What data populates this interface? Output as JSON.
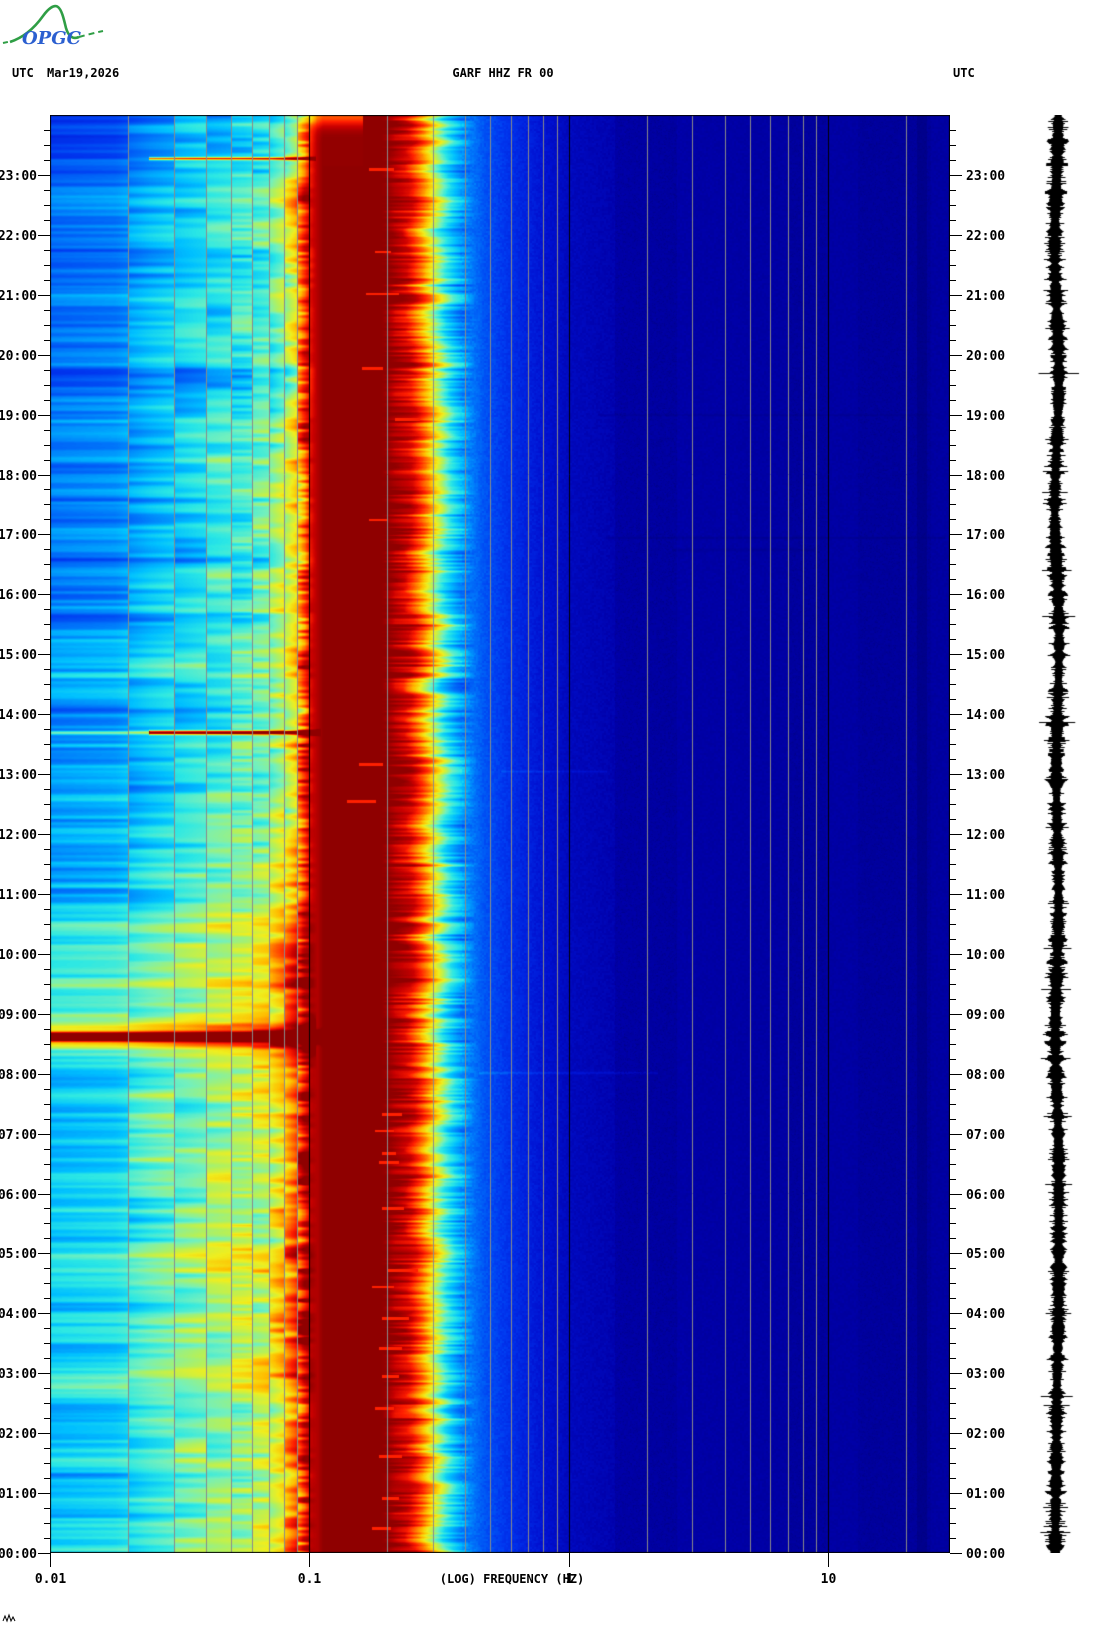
{
  "header": {
    "utc_left": "UTC",
    "date": "Mar19,2026",
    "station_title": "GARF HHZ FR 00",
    "utc_right": "UTC"
  },
  "logo": {
    "text": "OPGC",
    "curve_color": "#2f9e45",
    "text_color": "#2b5fd0"
  },
  "x_axis": {
    "label": "(LOG) FREQUENCY (HZ)",
    "ticks": [
      {
        "value": 0.01,
        "label": "0.01"
      },
      {
        "value": 0.1,
        "label": "0.1"
      },
      {
        "value": 1,
        "label": "1"
      },
      {
        "value": 10,
        "label": "10"
      }
    ],
    "minor_gridlines": [
      0.02,
      0.03,
      0.04,
      0.05,
      0.06,
      0.07,
      0.08,
      0.09,
      0.2,
      0.3,
      0.4,
      0.5,
      0.6,
      0.7,
      0.8,
      0.9,
      2,
      3,
      4,
      5,
      6,
      7,
      8,
      9,
      20
    ],
    "black_gridlines": [
      0.1,
      1,
      10
    ],
    "gridline_color": "#8a8a8a",
    "range_hz": [
      0.01,
      29.6
    ]
  },
  "y_axis": {
    "unit": "UTC",
    "hour_labels": [
      "00:00",
      "01:00",
      "02:00",
      "03:00",
      "04:00",
      "05:00",
      "06:00",
      "07:00",
      "08:00",
      "09:00",
      "10:00",
      "11:00",
      "12:00",
      "13:00",
      "14:00",
      "15:00",
      "16:00",
      "17:00",
      "18:00",
      "19:00",
      "20:00",
      "21:00",
      "22:00",
      "23:00"
    ],
    "minor_ticks_per_hour": 4,
    "range_hours": [
      0,
      24
    ]
  },
  "side_trace": {
    "description": "vertical seismogram amplitude trace",
    "color": "#000000"
  },
  "chart_data": {
    "type": "heatmap",
    "title": "GARF HHZ FR 00",
    "xlabel": "(LOG) FREQUENCY (HZ)",
    "x_hz_range": [
      0.01,
      29.6
    ],
    "y_time_range_utc": [
      "00:00",
      "24:00"
    ],
    "legend": "none",
    "grid": "vertical log-frequency gridlines",
    "colormap": [
      [
        0.0,
        "#000080"
      ],
      [
        0.08,
        "#000092"
      ],
      [
        0.14,
        "#0000AA"
      ],
      [
        0.22,
        "#0012D2"
      ],
      [
        0.3,
        "#0038F0"
      ],
      [
        0.38,
        "#0076FA"
      ],
      [
        0.46,
        "#00C0FF"
      ],
      [
        0.52,
        "#2CE8E4"
      ],
      [
        0.58,
        "#72F0BE"
      ],
      [
        0.64,
        "#B4F05A"
      ],
      [
        0.7,
        "#F0EE1E"
      ],
      [
        0.76,
        "#FFBE00"
      ],
      [
        0.82,
        "#FF6E00"
      ],
      [
        0.88,
        "#FF1E00"
      ],
      [
        0.94,
        "#C80000"
      ],
      [
        1.0,
        "#8F0000"
      ]
    ],
    "bands": [
      {
        "hz": [
          0.01,
          0.025
        ],
        "appearance": "blue with horizontal stripe noise"
      },
      {
        "hz": [
          0.025,
          0.08
        ],
        "appearance": "cyan-green striped columns"
      },
      {
        "hz": [
          0.08,
          0.1
        ],
        "appearance": "yellow/orange/red striped column"
      },
      {
        "hz": [
          0.1,
          0.25
        ],
        "appearance": "saturated dark-red microseism band"
      },
      {
        "hz": [
          0.25,
          0.35
        ],
        "appearance": "ragged red-yellow-cyan transition edge"
      },
      {
        "hz": [
          0.35,
          0.6
        ],
        "appearance": "blue"
      },
      {
        "hz": [
          0.6,
          29.6
        ],
        "appearance": "quiet dark navy with faint speckle"
      }
    ],
    "events": [
      {
        "time_utc": "23:17",
        "t": 23.28,
        "hw": 0.035,
        "hz": [
          0.024,
          0.105
        ],
        "amp": 0.4,
        "mode": "add"
      },
      {
        "time_utc": "23:55",
        "t": 24.0,
        "hw": 0.3,
        "hz": [
          0.09,
          0.16
        ],
        "amp": -0.16,
        "mode": "add"
      },
      {
        "time_utc": "13:42",
        "t": 13.7,
        "hw": 0.05,
        "hz": [
          0.024,
          0.11
        ],
        "amp": 0.58,
        "mode": "add"
      },
      {
        "time_utc": "13:42",
        "t": 13.7,
        "hw": 0.05,
        "hz": [
          0.01,
          0.024
        ],
        "amp": 0.2,
        "mode": "add"
      },
      {
        "time_utc": "08:38",
        "t": 8.62,
        "hw": 0.11,
        "hz": [
          0.01,
          0.115
        ],
        "amp": 0.65,
        "mode": "add"
      },
      {
        "time_utc": "08:38",
        "t": 8.62,
        "hw": 0.34,
        "hz": [
          0.01,
          0.105
        ],
        "amp": 0.17,
        "mode": "add"
      },
      {
        "time_utc": "08:01",
        "t": 8.02,
        "hw": 0.035,
        "hz": [
          0.45,
          2.2
        ],
        "amp": 0.05,
        "mode": "add"
      },
      {
        "time_utc": "13:03",
        "t": 13.05,
        "hw": 0.03,
        "hz": [
          0.55,
          1.4
        ],
        "amp": 0.04,
        "mode": "add"
      },
      {
        "time_utc": "16:57",
        "t": 16.95,
        "hw": 0.03,
        "hz": [
          1.4,
          28
        ],
        "amp": -0.04,
        "mode": "add"
      },
      {
        "time_utc": "19:00",
        "t": 19.0,
        "hw": 0.03,
        "hz": [
          1.3,
          25
        ],
        "amp": -0.03,
        "mode": "add"
      },
      {
        "time_utc": "16:45",
        "t": 16.75,
        "hw": 0.04,
        "hz": [
          2.5,
          9
        ],
        "amp": -0.03,
        "mode": "add"
      }
    ],
    "red_dashes": [
      {
        "t": 23.1,
        "hz": [
          0.17,
          0.21
        ]
      },
      {
        "t": 21.72,
        "hz": [
          0.18,
          0.205
        ]
      },
      {
        "t": 21.02,
        "hz": [
          0.165,
          0.22
        ]
      },
      {
        "t": 19.78,
        "hz": [
          0.16,
          0.19
        ]
      },
      {
        "t": 18.93,
        "hz": [
          0.215,
          0.265
        ]
      },
      {
        "t": 17.25,
        "hz": [
          0.17,
          0.2
        ]
      },
      {
        "t": 13.17,
        "hz": [
          0.155,
          0.19
        ]
      },
      {
        "t": 12.55,
        "hz": [
          0.14,
          0.18
        ]
      },
      {
        "t": 7.33,
        "hz": [
          0.19,
          0.225
        ]
      },
      {
        "t": 7.05,
        "hz": [
          0.18,
          0.21
        ]
      },
      {
        "t": 6.68,
        "hz": [
          0.19,
          0.215
        ]
      },
      {
        "t": 6.53,
        "hz": [
          0.185,
          0.22
        ]
      },
      {
        "t": 5.76,
        "hz": [
          0.19,
          0.23
        ]
      },
      {
        "t": 4.72,
        "hz": [
          0.2,
          0.26
        ]
      },
      {
        "t": 4.45,
        "hz": [
          0.175,
          0.21
        ]
      },
      {
        "t": 3.92,
        "hz": [
          0.19,
          0.24
        ]
      },
      {
        "t": 3.42,
        "hz": [
          0.185,
          0.225
        ]
      },
      {
        "t": 2.95,
        "hz": [
          0.19,
          0.22
        ]
      },
      {
        "t": 2.42,
        "hz": [
          0.18,
          0.21
        ]
      },
      {
        "t": 1.62,
        "hz": [
          0.185,
          0.225
        ]
      },
      {
        "t": 0.92,
        "hz": [
          0.19,
          0.22
        ]
      },
      {
        "t": 0.42,
        "hz": [
          0.175,
          0.205
        ]
      }
    ],
    "render": {
      "seed": 1337,
      "profile_log10hz": [
        -2.0,
        -1.75,
        -1.62,
        -1.55,
        -1.4,
        -1.25,
        -1.15,
        -1.1,
        -1.05,
        -1.01,
        -0.95,
        -0.7,
        -0.62,
        -0.56,
        -0.52,
        -0.47,
        -0.41,
        -0.33,
        -0.2,
        -0.05,
        0.0,
        0.2,
        0.5,
        1.0,
        1.48
      ],
      "profile_amp": [
        0.4,
        0.42,
        0.47,
        0.49,
        0.53,
        0.56,
        0.6,
        0.66,
        0.76,
        0.9,
        1.0,
        1.0,
        0.93,
        0.8,
        0.68,
        0.52,
        0.42,
        0.34,
        0.27,
        0.2,
        0.18,
        0.15,
        0.13,
        0.125,
        0.12
      ],
      "trend_hours": [
        0,
        2,
        5,
        7,
        8.6,
        9.6,
        11,
        13,
        15,
        17,
        19,
        21,
        22.5,
        24
      ],
      "trend_amp": [
        0.1,
        0.09,
        0.1,
        0.08,
        0.12,
        0.1,
        0.05,
        0.03,
        0.02,
        0.0,
        -0.02,
        -0.03,
        -0.01,
        -0.06
      ],
      "bin_noise_amp": [
        0.05,
        0.055,
        0.06,
        0.065,
        0.065,
        0.07,
        0.075,
        0.1,
        0.12
      ],
      "row_noise_amp": [
        0.05,
        0.045
      ],
      "jitter_zone": [
        -0.68,
        -0.34
      ],
      "jitter_amp": [
        0.028,
        0.02
      ],
      "dark_columns": [
        {
          "hz": [
            1.5,
            2.6
          ],
          "amp": -0.02,
          "speckle": 0.5
        },
        {
          "hz": [
            7.0,
            9.8
          ],
          "amp": -0.015,
          "speckle": 0.35
        },
        {
          "hz": [
            13,
            25
          ],
          "amp": -0.015,
          "speckle": 0.4
        },
        {
          "hz": [
            22,
            24
          ],
          "amp": -0.05,
          "speckle": 0.6
        }
      ]
    }
  }
}
